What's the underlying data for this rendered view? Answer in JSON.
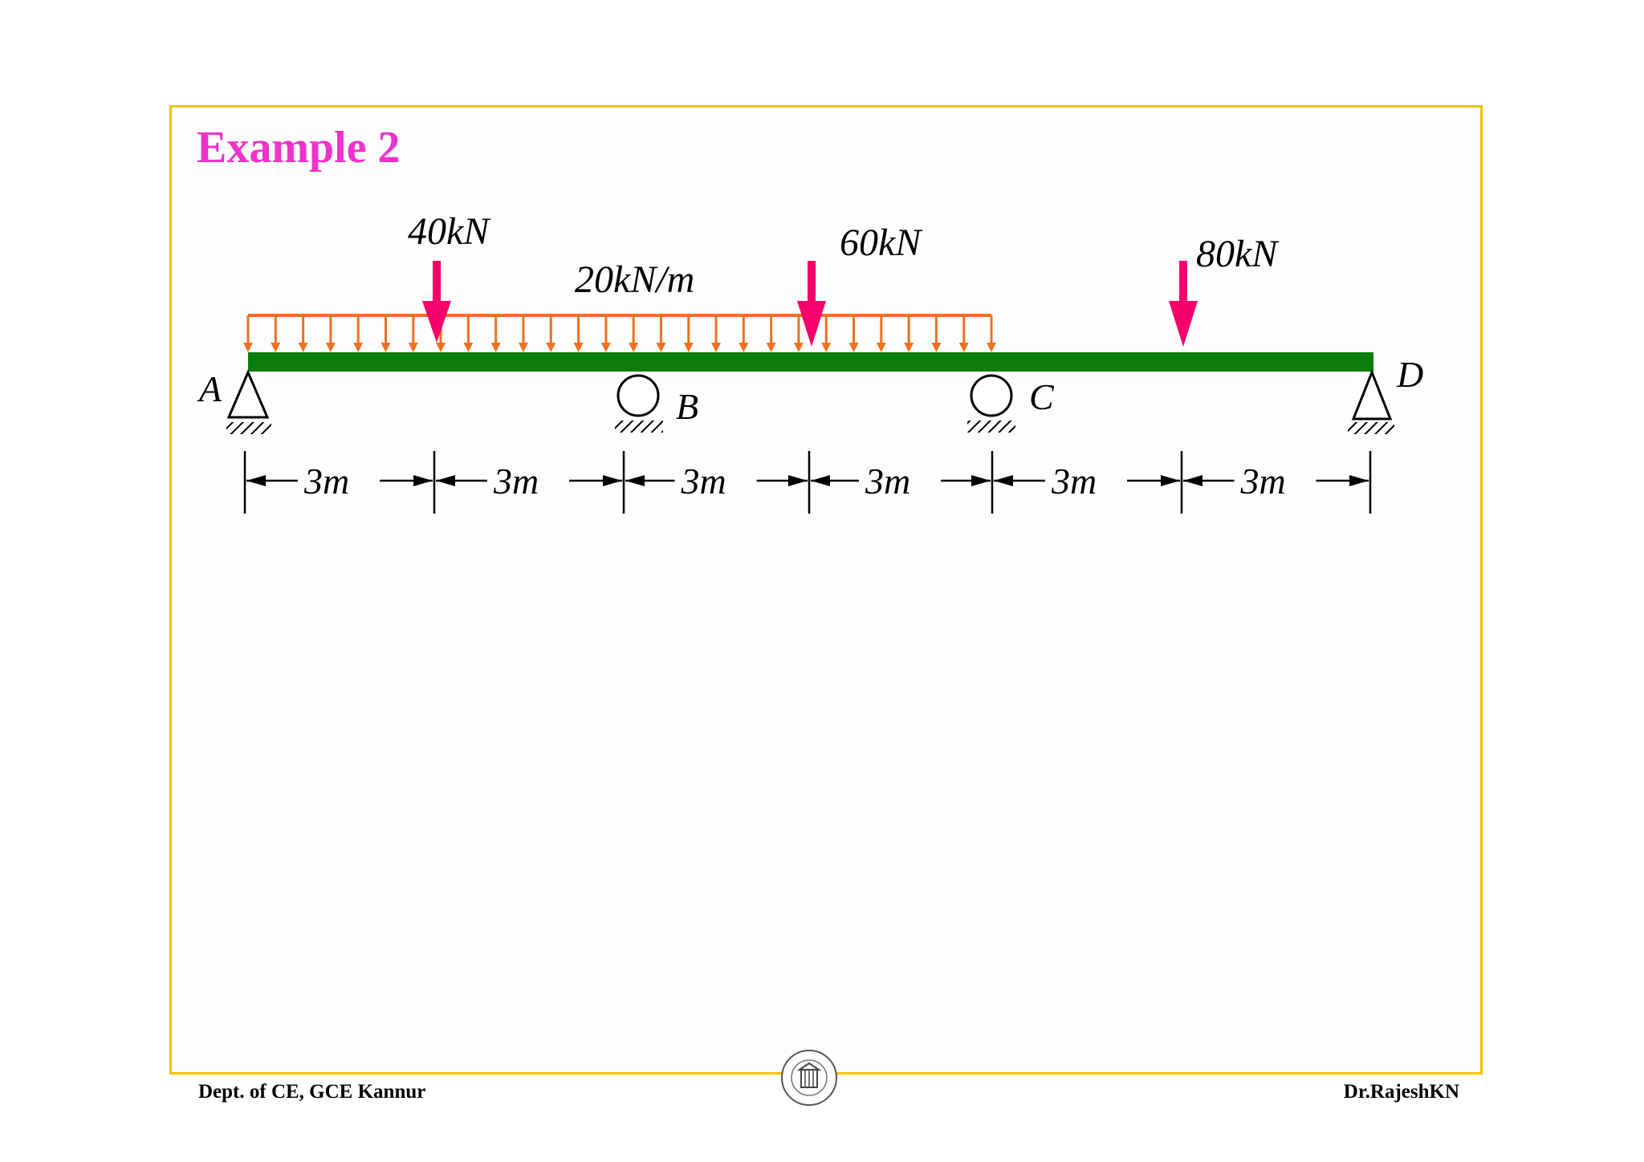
{
  "title": "Example 2",
  "loads": {
    "point_1": "40kN",
    "point_2": "60kN",
    "point_3": "80kN",
    "udl": "20kN/m"
  },
  "supports": {
    "a": "A",
    "b": "B",
    "c": "C",
    "d": "D"
  },
  "spans": [
    "3m",
    "3m",
    "3m",
    "3m",
    "3m",
    "3m"
  ],
  "footer": {
    "left": "Dept. of CE, GCE Kannur",
    "right": "Dr.RajeshKN"
  },
  "colors": {
    "beam": "#0a7d0a",
    "udl": "#f07020",
    "point_load": "#f5006b",
    "title": "#ee33cc",
    "frame": "#f2c400"
  },
  "icons": {
    "logo": "college-emblem-icon"
  }
}
